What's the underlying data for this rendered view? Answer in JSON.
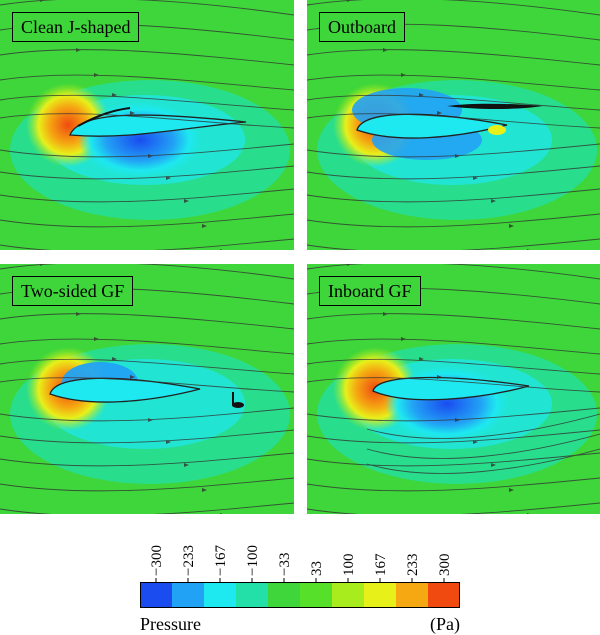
{
  "panels": [
    {
      "id": "p1",
      "label": "Clean J-shaped",
      "variant": "jshaped"
    },
    {
      "id": "p2",
      "label": "Outboard",
      "variant": "outboard"
    },
    {
      "id": "p3",
      "label": "Two-sided GF",
      "variant": "twosided"
    },
    {
      "id": "p4",
      "label": "Inboard GF",
      "variant": "inboard"
    }
  ],
  "legend": {
    "title": "Pressure",
    "unit": "(Pa)",
    "ticks": [
      "−300",
      "−233",
      "−167",
      "−100",
      "−33",
      "33",
      "100",
      "167",
      "233",
      "300"
    ],
    "colors": [
      "#1a4cf0",
      "#22a2f5",
      "#1ee8f0",
      "#22e0a8",
      "#3ed63a",
      "#56e02a",
      "#a8ec1e",
      "#e8f01a",
      "#f5a812",
      "#f04a10"
    ]
  },
  "field_colors": {
    "background": "#3ed63a",
    "stagnation": "#f04a10",
    "suction": "#1a4cf0"
  }
}
